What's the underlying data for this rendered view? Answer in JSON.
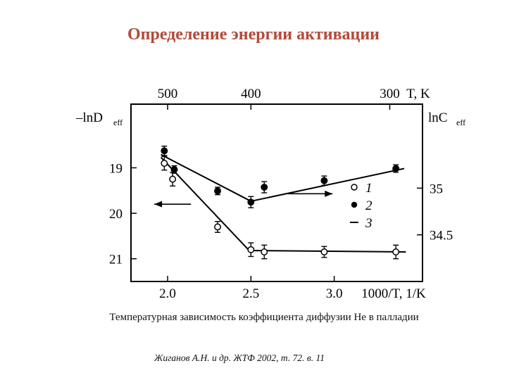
{
  "slide": {
    "title": "Определение энергии активации",
    "caption": "Температурная зависимость коэффициента диффузии Не в палладии",
    "reference": "Жиганов А.Н. и др. ЖТФ 2002, т. 72.  в. 11"
  },
  "chart_data": {
    "type": "scatter",
    "x": {
      "label": "1000/T, 1/K",
      "ticks": [
        2.0,
        2.5,
        3.0
      ],
      "range": [
        1.78,
        3.53
      ]
    },
    "x_top": {
      "label": "T, K",
      "ticks": [
        500,
        400,
        300
      ]
    },
    "y_left": {
      "label": "–lnD",
      "label_sub": "eff",
      "ticks": [
        19,
        20,
        21
      ],
      "range": [
        17.6,
        21.5
      ],
      "inverted": true
    },
    "y_right": {
      "label": "lnC",
      "label_sub": "eff",
      "ticks": [
        35,
        34.5
      ],
      "range": [
        34.0,
        35.9
      ]
    },
    "series": [
      {
        "name": "1",
        "marker": "open-circle",
        "axis": "left",
        "x": [
          1.98,
          2.03,
          2.3,
          2.5,
          2.58,
          2.94,
          3.37
        ],
        "y": [
          18.9,
          19.25,
          20.3,
          20.8,
          20.85,
          20.85,
          20.85
        ],
        "err": [
          0.15,
          0.15,
          0.12,
          0.15,
          0.15,
          0.12,
          0.15
        ]
      },
      {
        "name": "2",
        "marker": "filled-circle",
        "axis": "right",
        "x": [
          1.98,
          2.04,
          2.3,
          2.5,
          2.58,
          2.94,
          3.37
        ],
        "y": [
          35.4,
          35.2,
          34.97,
          34.85,
          35.01,
          35.08,
          35.21
        ],
        "err": [
          0.05,
          0.04,
          0.04,
          0.06,
          0.06,
          0.05,
          0.04
        ]
      }
    ],
    "fit_lines": [
      {
        "axis": "left",
        "x": [
          1.96,
          2.49
        ],
        "y": [
          18.77,
          20.82
        ]
      },
      {
        "axis": "left",
        "x": [
          2.49,
          3.43
        ],
        "y": [
          20.82,
          20.85
        ]
      },
      {
        "axis": "right",
        "x": [
          1.96,
          2.5
        ],
        "y": [
          35.36,
          34.86
        ]
      },
      {
        "axis": "right",
        "x": [
          2.5,
          3.42
        ],
        "y": [
          34.86,
          35.21
        ]
      }
    ],
    "arrows": [
      {
        "axis": "left",
        "x_from": 2.14,
        "x_to": 1.92,
        "y": 19.8
      },
      {
        "axis": "right",
        "x_from": 2.72,
        "x_to": 2.99,
        "y": 34.94
      }
    ],
    "legend": {
      "position": "right",
      "items": [
        {
          "marker": "open-circle",
          "label": "1"
        },
        {
          "marker": "filled-circle",
          "label": "2"
        },
        {
          "marker": "line",
          "label": "3"
        }
      ]
    },
    "grid": false
  }
}
